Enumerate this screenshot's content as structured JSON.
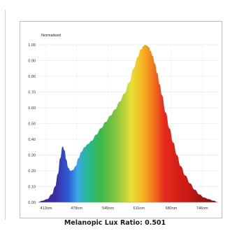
{
  "caption": "Melanopic Lux Ratio: 0.501",
  "chart_data": {
    "type": "area",
    "title": "",
    "ylabel_inline": "Normalised",
    "xlabel": "",
    "ylabel": "",
    "ylim": [
      0,
      1
    ],
    "xlim": [
      395,
      780
    ],
    "y_ticks": [
      "0.00",
      "0.10",
      "0.20",
      "0.30",
      "0.40",
      "0.50",
      "0.60",
      "0.70",
      "0.80",
      "0.90",
      "1.00"
    ],
    "x_ticks": [
      {
        "value": 413,
        "label": "413nm"
      },
      {
        "value": 478,
        "label": "478nm"
      },
      {
        "value": 545,
        "label": "545nm"
      },
      {
        "value": 611,
        "label": "611nm"
      },
      {
        "value": 680,
        "label": "680nm"
      },
      {
        "value": 746,
        "label": "746nm"
      }
    ],
    "grid": true,
    "fill": "visible-spectrum gradient",
    "series": [
      {
        "x": [
          395,
          405,
          415,
          425,
          432,
          438,
          443,
          448,
          452,
          456,
          460,
          465,
          470,
          476,
          482,
          488,
          495,
          502,
          510,
          520,
          530,
          540,
          550,
          560,
          570,
          580,
          590,
          600,
          608,
          615,
          620,
          624,
          628,
          632,
          636,
          640,
          645,
          650,
          655,
          660,
          668,
          676,
          684,
          692,
          700,
          710,
          720,
          730,
          740,
          750,
          760,
          770,
          780
        ],
        "y": [
          0.0,
          0.01,
          0.02,
          0.05,
          0.1,
          0.18,
          0.28,
          0.355,
          0.33,
          0.27,
          0.22,
          0.2,
          0.205,
          0.23,
          0.28,
          0.32,
          0.35,
          0.37,
          0.39,
          0.43,
          0.47,
          0.51,
          0.55,
          0.59,
          0.64,
          0.69,
          0.76,
          0.85,
          0.92,
          0.97,
          0.99,
          1.0,
          0.995,
          0.985,
          0.96,
          0.93,
          0.88,
          0.82,
          0.75,
          0.68,
          0.57,
          0.47,
          0.38,
          0.3,
          0.23,
          0.17,
          0.12,
          0.08,
          0.05,
          0.03,
          0.02,
          0.01,
          0.0
        ]
      }
    ]
  }
}
